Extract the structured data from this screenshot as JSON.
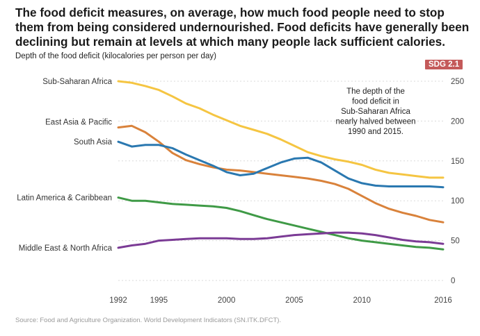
{
  "title": "The food deficit measures, on average, how much food people need to stop them from being considered undernourished. Food deficits have generally been declining but remain at levels at which many people lack sufficient calories.",
  "subtitle": "Depth of the food deficit (kilocalories per person per day)",
  "badge": "SDG 2.1",
  "source": "Source: Food and Agriculture Organization. World Development Indicators (SN.ITK.DFCT).",
  "chart_data": {
    "type": "line",
    "title": "Depth of the food deficit (kilocalories per person per day)",
    "xlabel": "",
    "ylabel": "Depth of the food deficit (kilocalories per person per day)",
    "xlim": [
      1992,
      2016
    ],
    "ylim": [
      0,
      250
    ],
    "x_tick_labels": [
      "1992",
      "1995",
      "2000",
      "2005",
      "2010",
      "2016"
    ],
    "y_ticks": [
      0,
      50,
      100,
      150,
      200,
      250
    ],
    "grid": "horizontal",
    "x": [
      1992,
      1993,
      1994,
      1995,
      1996,
      1997,
      1998,
      1999,
      2000,
      2001,
      2002,
      2003,
      2004,
      2005,
      2006,
      2007,
      2008,
      2009,
      2010,
      2011,
      2012,
      2013,
      2014,
      2015,
      2016
    ],
    "series": [
      {
        "name": "Sub-Saharan Africa",
        "color": "#f5c542",
        "values": [
          250,
          248,
          244,
          239,
          231,
          222,
          216,
          208,
          201,
          194,
          189,
          184,
          177,
          169,
          161,
          156,
          152,
          149,
          145,
          139,
          135,
          133,
          131,
          129,
          129
        ]
      },
      {
        "name": "East Asia & Pacific",
        "color": "#d9823b",
        "values": [
          192,
          194,
          186,
          174,
          160,
          151,
          146,
          142,
          139,
          138,
          136,
          134,
          132,
          130,
          128,
          125,
          121,
          115,
          106,
          97,
          90,
          85,
          81,
          76,
          73
        ]
      },
      {
        "name": "South Asia",
        "color": "#2a78b0",
        "values": [
          174,
          168,
          170,
          170,
          166,
          158,
          151,
          144,
          136,
          132,
          134,
          141,
          148,
          153,
          154,
          148,
          138,
          128,
          122,
          119,
          118,
          118,
          118,
          118,
          117
        ]
      },
      {
        "name": "Latin America & Caribbean",
        "color": "#3f9a46",
        "values": [
          104,
          100,
          100,
          98,
          96,
          95,
          94,
          93,
          91,
          87,
          82,
          77,
          73,
          69,
          65,
          61,
          57,
          53,
          50,
          48,
          46,
          44,
          42,
          41,
          39
        ]
      },
      {
        "name": "Middle East & North Africa",
        "color": "#7b3b95",
        "values": [
          41,
          44,
          46,
          50,
          51,
          52,
          53,
          53,
          53,
          52,
          52,
          53,
          55,
          57,
          58,
          59,
          60,
          60,
          59,
          57,
          54,
          51,
          49,
          48,
          46
        ]
      }
    ],
    "annotation": [
      "The depth of the",
      "food deficit in",
      "Sub-Saharan Africa",
      "nearly halved between",
      "1990 and 2015."
    ]
  }
}
